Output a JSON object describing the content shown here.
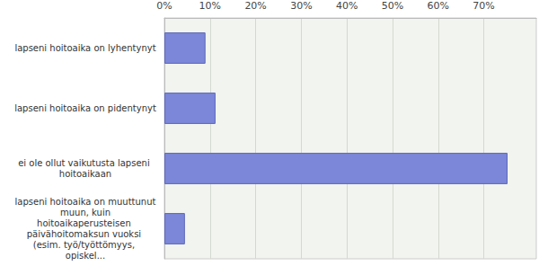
{
  "chart_data": {
    "type": "bar",
    "orientation": "horizontal",
    "categories": [
      "lapseni hoitoaika on lyhentynyt",
      "lapseni hoitoaika on pidentynyt",
      "ei ole ollut vaikutusta lapseni hoitoaikaan",
      "lapseni hoitoaika on muuttunut muun, kuin hoitoaikaperusteisen päivähoitomaksun vuoksi (esim. työ/työttömyys, opiskel..."
    ],
    "values": [
      9.0,
      11.2,
      75.2,
      4.5
    ],
    "color": "#7c87d9",
    "xlim": [
      0,
      81.5
    ],
    "xticks": [
      {
        "value": 0,
        "label": "0%"
      },
      {
        "value": 10,
        "label": "10%"
      },
      {
        "value": 20,
        "label": "20%"
      },
      {
        "value": 30,
        "label": "30%"
      },
      {
        "value": 40,
        "label": "40%"
      },
      {
        "value": 50,
        "label": "50%"
      },
      {
        "value": 60,
        "label": "60%"
      },
      {
        "value": 70,
        "label": "70%"
      }
    ],
    "grid": true
  }
}
